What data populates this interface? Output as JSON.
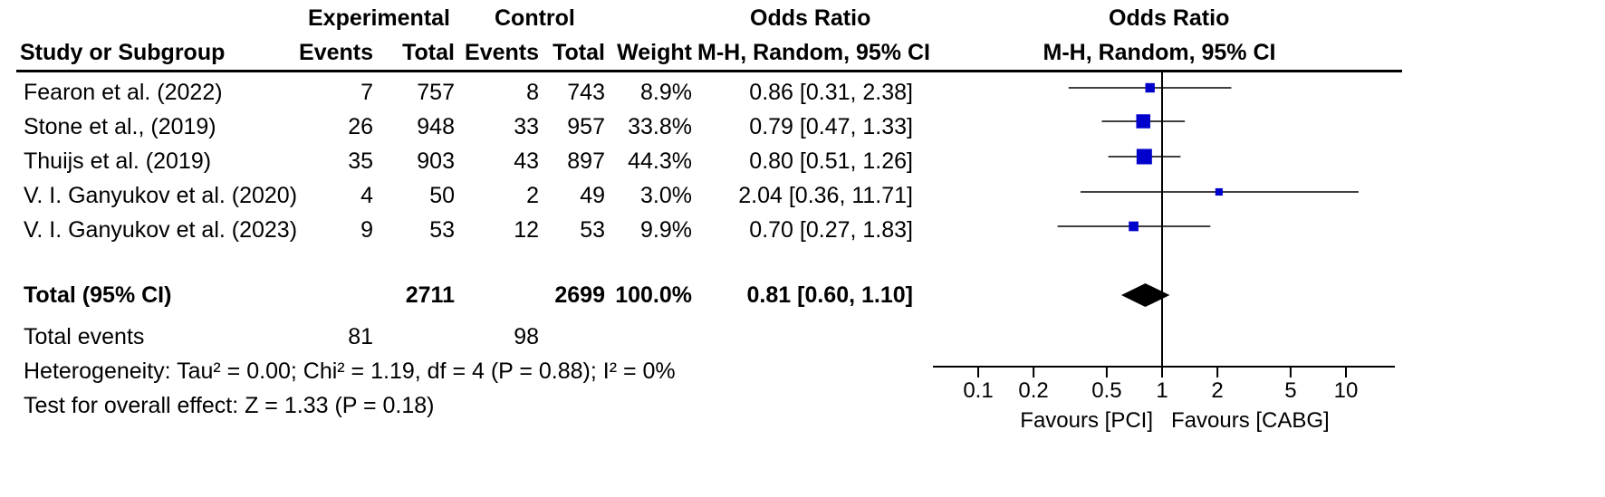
{
  "header": {
    "experimental": "Experimental",
    "control": "Control",
    "or_left": "Odds Ratio",
    "or_left_method": "M-H, Random, 95% CI",
    "or_right": "Odds Ratio",
    "or_right_method": "M-H, Random, 95% CI",
    "study": "Study or Subgroup",
    "events": "Events",
    "total": "Total",
    "weight": "Weight"
  },
  "rows": [
    {
      "study": "Fearon et al. (2022)",
      "exp_events": "7",
      "exp_total": "757",
      "ctl_events": "8",
      "ctl_total": "743",
      "weight": "8.9%",
      "ci_text": "0.86 [0.31, 2.38]"
    },
    {
      "study": "Stone et al., (2019)",
      "exp_events": "26",
      "exp_total": "948",
      "ctl_events": "33",
      "ctl_total": "957",
      "weight": "33.8%",
      "ci_text": "0.79 [0.47, 1.33]"
    },
    {
      "study": "Thuijs et al. (2019)",
      "exp_events": "35",
      "exp_total": "903",
      "ctl_events": "43",
      "ctl_total": "897",
      "weight": "44.3%",
      "ci_text": "0.80 [0.51, 1.26]"
    },
    {
      "study": "V. I. Ganyukov et al. (2020)",
      "exp_events": "4",
      "exp_total": "50",
      "ctl_events": "2",
      "ctl_total": "49",
      "weight": "3.0%",
      "ci_text": "2.04 [0.36, 11.71]"
    },
    {
      "study": "V. I. Ganyukov et al. (2023)",
      "exp_events": "9",
      "exp_total": "53",
      "ctl_events": "12",
      "ctl_total": "53",
      "weight": "9.9%",
      "ci_text": "0.70 [0.27, 1.83]"
    }
  ],
  "total": {
    "label": "Total (95% CI)",
    "exp_total": "2711",
    "ctl_total": "2699",
    "weight": "100.0%",
    "ci_text": "0.81 [0.60, 1.10]"
  },
  "total_events": {
    "label": "Total events",
    "exp": "81",
    "ctl": "98"
  },
  "heterogeneity": "Heterogeneity: Tau² = 0.00; Chi² = 1.19, df = 4 (P = 0.88); I² = 0%",
  "overall_effect": "Test for overall effect: Z = 1.33 (P = 0.18)",
  "favours_left": "Favours [PCI]",
  "favours_right": "Favours [CABG]",
  "colors": {
    "study_marker": "#0000cc",
    "total_marker": "#000000"
  },
  "chart_data": {
    "type": "forest",
    "scale": "log",
    "xlim": [
      0.05,
      20
    ],
    "ticks": [
      0.1,
      0.2,
      0.5,
      1,
      2,
      5,
      10
    ],
    "tick_labels": [
      "0.1",
      "0.2",
      "0.5",
      "1",
      "2",
      "5",
      "10"
    ],
    "null_line": 1,
    "studies": [
      {
        "name": "Fearon et al. (2022)",
        "or": 0.86,
        "lower": 0.31,
        "upper": 2.38,
        "weight": 8.9
      },
      {
        "name": "Stone et al., (2019)",
        "or": 0.79,
        "lower": 0.47,
        "upper": 1.33,
        "weight": 33.8
      },
      {
        "name": "Thuijs et al. (2019)",
        "or": 0.8,
        "lower": 0.51,
        "upper": 1.26,
        "weight": 44.3
      },
      {
        "name": "V. I. Ganyukov et al. (2020)",
        "or": 2.04,
        "lower": 0.36,
        "upper": 11.71,
        "weight": 3.0
      },
      {
        "name": "V. I. Ganyukov et al. (2023)",
        "or": 0.7,
        "lower": 0.27,
        "upper": 1.83,
        "weight": 9.9
      }
    ],
    "pooled": {
      "or": 0.81,
      "lower": 0.6,
      "upper": 1.1
    }
  }
}
